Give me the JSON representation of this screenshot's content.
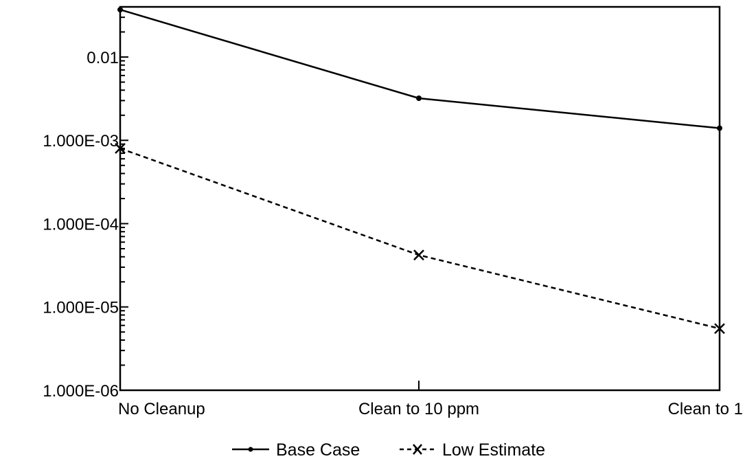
{
  "chart_data": {
    "type": "line",
    "title": "",
    "xlabel": "",
    "ylabel": "",
    "y_scale": "log",
    "ylim": [
      1e-06,
      0.04
    ],
    "grid": false,
    "legend_position": "bottom-center",
    "categories": [
      "No Cleanup",
      "Clean to 10 ppm",
      "Clean to 1"
    ],
    "y_tick_values": [
      0.01,
      0.001,
      0.0001,
      1e-05,
      1e-06
    ],
    "y_tick_labels": [
      "0.01",
      "1.000E-03",
      "1.000E-04",
      "1.000E-05",
      "1.000E-06"
    ],
    "series": [
      {
        "name": "Base Case",
        "values": [
          0.037,
          0.0032,
          0.0014
        ],
        "line_style": "solid",
        "marker": "dot",
        "color": "#000000"
      },
      {
        "name": "Low Estimate",
        "values": [
          0.0008,
          4.2e-05,
          5.5e-06
        ],
        "line_style": "dashed",
        "marker": "x",
        "color": "#000000"
      }
    ]
  }
}
